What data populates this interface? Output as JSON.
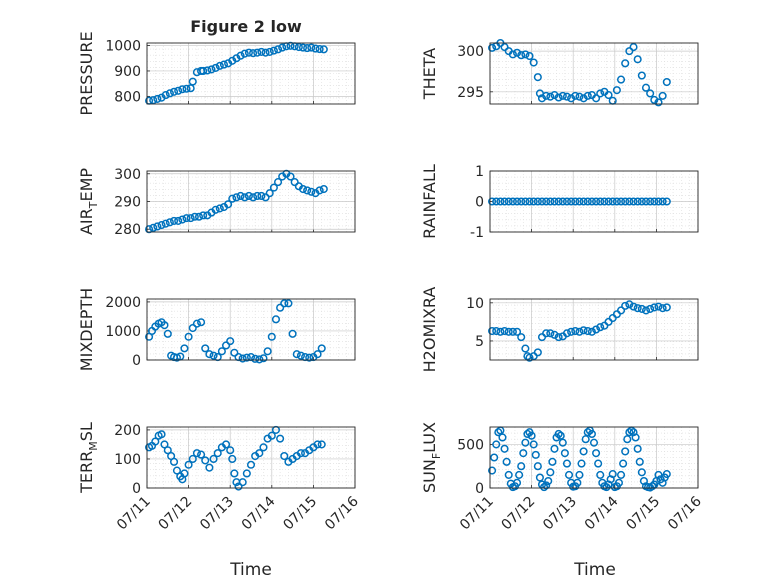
{
  "figure": {
    "title": "Figure 2 low",
    "x_label": "Time"
  },
  "style": {
    "marker_color": "#0072BD",
    "axis_color": "#262626",
    "grid_color": "#dcdcdc",
    "background": "#ffffff"
  },
  "chart_data": [
    {
      "type": "scatter",
      "ylabel": "PRESSURE",
      "ylabel_sub": "",
      "ylabel_rest": "",
      "ylim": [
        770,
        1010
      ],
      "yticks": [
        800,
        900,
        1000
      ],
      "xlim": [
        0,
        5
      ],
      "xticks": [
        "07/11",
        "07/12",
        "07/13",
        "07/14",
        "07/15",
        "07/16"
      ],
      "show_xtick_labels": false,
      "grid": true,
      "marker": "circle-open",
      "x": [
        0.05,
        0.15,
        0.25,
        0.35,
        0.45,
        0.55,
        0.65,
        0.75,
        0.85,
        0.95,
        1.05,
        1.1,
        1.2,
        1.3,
        1.35,
        1.45,
        1.55,
        1.65,
        1.75,
        1.85,
        1.95,
        2.05,
        2.15,
        2.25,
        2.35,
        2.45,
        2.55,
        2.65,
        2.75,
        2.85,
        2.95,
        3.05,
        3.15,
        3.25,
        3.35,
        3.45,
        3.55,
        3.65,
        3.75,
        3.85,
        3.95,
        4.05,
        4.15,
        4.25
      ],
      "y": [
        783,
        785,
        790,
        795,
        805,
        812,
        818,
        822,
        828,
        830,
        832,
        858,
        895,
        900,
        900,
        902,
        906,
        912,
        920,
        925,
        930,
        940,
        950,
        960,
        968,
        972,
        970,
        972,
        975,
        972,
        975,
        980,
        985,
        992,
        997,
        999,
        997,
        994,
        992,
        990,
        992,
        988,
        986,
        985
      ]
    },
    {
      "type": "scatter",
      "ylabel": "THETA",
      "ylabel_sub": "",
      "ylabel_rest": "",
      "ylim": [
        293.5,
        301
      ],
      "yticks": [
        295,
        300
      ],
      "xlim": [
        0,
        5
      ],
      "xticks": [
        "07/11",
        "07/12",
        "07/13",
        "07/14",
        "07/15",
        "07/16"
      ],
      "show_xtick_labels": false,
      "grid": true,
      "marker": "circle-open",
      "x": [
        0.05,
        0.15,
        0.25,
        0.35,
        0.45,
        0.55,
        0.65,
        0.75,
        0.85,
        0.95,
        1.05,
        1.15,
        1.2,
        1.25,
        1.35,
        1.45,
        1.55,
        1.65,
        1.75,
        1.85,
        1.95,
        2.05,
        2.15,
        2.25,
        2.35,
        2.45,
        2.55,
        2.65,
        2.75,
        2.85,
        2.95,
        3.05,
        3.15,
        3.25,
        3.35,
        3.45,
        3.55,
        3.65,
        3.75,
        3.85,
        3.95,
        4.05,
        4.15,
        4.25
      ],
      "y": [
        300.4,
        300.6,
        301.0,
        300.5,
        300.0,
        299.6,
        299.8,
        299.5,
        299.6,
        299.4,
        298.6,
        296.8,
        294.8,
        294.2,
        294.5,
        294.4,
        294.6,
        294.3,
        294.5,
        294.4,
        294.2,
        294.5,
        294.4,
        294.2,
        294.5,
        294.6,
        294.2,
        294.8,
        295.0,
        294.6,
        293.9,
        295.2,
        296.5,
        298.5,
        300.0,
        300.5,
        299.0,
        297.0,
        295.5,
        294.8,
        294.0,
        293.7,
        294.5,
        296.2
      ]
    },
    {
      "type": "scatter",
      "ylabel": "AIR",
      "ylabel_sub": "T",
      "ylabel_rest": "EMP",
      "ylim": [
        279,
        301
      ],
      "yticks": [
        280,
        290,
        300
      ],
      "xlim": [
        0,
        5
      ],
      "xticks": [
        "07/11",
        "07/12",
        "07/13",
        "07/14",
        "07/15",
        "07/16"
      ],
      "show_xtick_labels": false,
      "grid": true,
      "marker": "circle-open",
      "x": [
        0.05,
        0.15,
        0.25,
        0.35,
        0.45,
        0.55,
        0.65,
        0.75,
        0.85,
        0.95,
        1.05,
        1.15,
        1.25,
        1.35,
        1.45,
        1.55,
        1.65,
        1.75,
        1.85,
        1.95,
        2.05,
        2.15,
        2.25,
        2.35,
        2.45,
        2.55,
        2.65,
        2.75,
        2.85,
        2.95,
        3.05,
        3.15,
        3.25,
        3.35,
        3.45,
        3.55,
        3.65,
        3.75,
        3.85,
        3.95,
        4.05,
        4.15,
        4.25
      ],
      "y": [
        280.0,
        280.5,
        281.0,
        281.5,
        282.0,
        282.5,
        283.0,
        283.0,
        283.5,
        284.0,
        284.0,
        284.5,
        284.5,
        285.0,
        285.0,
        286.0,
        287.0,
        287.5,
        288.0,
        289.0,
        291.0,
        291.5,
        292.0,
        291.5,
        292.0,
        291.5,
        292.0,
        292.0,
        291.5,
        293.0,
        295.0,
        297.0,
        299.0,
        300.0,
        299.0,
        297.0,
        295.5,
        294.5,
        294.0,
        293.5,
        293.0,
        294.0,
        294.5
      ]
    },
    {
      "type": "scatter",
      "ylabel": "RAINFALL",
      "ylabel_sub": "",
      "ylabel_rest": "",
      "ylim": [
        -1,
        1
      ],
      "yticks": [
        -1,
        0,
        1
      ],
      "xlim": [
        0,
        5
      ],
      "xticks": [
        "07/11",
        "07/12",
        "07/13",
        "07/14",
        "07/15",
        "07/16"
      ],
      "show_xtick_labels": false,
      "grid": true,
      "marker": "circle-open",
      "x": [
        0.05,
        0.15,
        0.25,
        0.35,
        0.45,
        0.55,
        0.65,
        0.75,
        0.85,
        0.95,
        1.05,
        1.15,
        1.25,
        1.35,
        1.45,
        1.55,
        1.65,
        1.75,
        1.85,
        1.95,
        2.05,
        2.15,
        2.25,
        2.35,
        2.45,
        2.55,
        2.65,
        2.75,
        2.85,
        2.95,
        3.05,
        3.15,
        3.25,
        3.35,
        3.45,
        3.55,
        3.65,
        3.75,
        3.85,
        3.95,
        4.05,
        4.15,
        4.25
      ],
      "y": [
        0,
        0,
        0,
        0,
        0,
        0,
        0,
        0,
        0,
        0,
        0,
        0,
        0,
        0,
        0,
        0,
        0,
        0,
        0,
        0,
        0,
        0,
        0,
        0,
        0,
        0,
        0,
        0,
        0,
        0,
        0,
        0,
        0,
        0,
        0,
        0,
        0,
        0,
        0,
        0,
        0,
        0,
        0
      ]
    },
    {
      "type": "scatter",
      "ylabel": "MIXDEPTH",
      "ylabel_sub": "",
      "ylabel_rest": "",
      "ylim": [
        0,
        2100
      ],
      "yticks": [
        0,
        1000,
        2000
      ],
      "xlim": [
        0,
        5
      ],
      "xticks": [
        "07/11",
        "07/12",
        "07/13",
        "07/14",
        "07/15",
        "07/16"
      ],
      "show_xtick_labels": false,
      "grid": true,
      "marker": "circle-open",
      "x": [
        0.05,
        0.12,
        0.2,
        0.28,
        0.35,
        0.42,
        0.5,
        0.58,
        0.65,
        0.72,
        0.8,
        0.9,
        1.0,
        1.1,
        1.2,
        1.3,
        1.4,
        1.5,
        1.6,
        1.7,
        1.8,
        1.9,
        2.0,
        2.1,
        2.2,
        2.3,
        2.4,
        2.5,
        2.6,
        2.7,
        2.8,
        2.9,
        3.0,
        3.1,
        3.2,
        3.3,
        3.4,
        3.5,
        3.6,
        3.7,
        3.8,
        3.9,
        4.0,
        4.1,
        4.2
      ],
      "y": [
        800,
        1000,
        1150,
        1250,
        1300,
        1200,
        900,
        150,
        100,
        80,
        120,
        400,
        800,
        1100,
        1250,
        1300,
        400,
        200,
        150,
        100,
        300,
        500,
        650,
        250,
        100,
        50,
        80,
        100,
        40,
        20,
        60,
        300,
        800,
        1400,
        1800,
        1950,
        1950,
        900,
        200,
        150,
        100,
        80,
        100,
        200,
        400
      ]
    },
    {
      "type": "scatter",
      "ylabel": "H2OMIXRA",
      "ylabel_sub": "",
      "ylabel_rest": "",
      "ylim": [
        2.5,
        10.5
      ],
      "yticks": [
        5,
        10
      ],
      "xlim": [
        0,
        5
      ],
      "xticks": [
        "07/11",
        "07/12",
        "07/13",
        "07/14",
        "07/15",
        "07/16"
      ],
      "show_xtick_labels": false,
      "grid": true,
      "marker": "circle-open",
      "x": [
        0.05,
        0.15,
        0.25,
        0.35,
        0.45,
        0.55,
        0.65,
        0.75,
        0.85,
        0.9,
        0.95,
        1.05,
        1.15,
        1.25,
        1.35,
        1.45,
        1.55,
        1.65,
        1.75,
        1.85,
        1.95,
        2.05,
        2.15,
        2.25,
        2.35,
        2.45,
        2.55,
        2.65,
        2.75,
        2.85,
        2.95,
        3.05,
        3.15,
        3.25,
        3.35,
        3.45,
        3.55,
        3.65,
        3.75,
        3.85,
        3.95,
        4.05,
        4.15,
        4.25
      ],
      "y": [
        6.3,
        6.3,
        6.2,
        6.3,
        6.2,
        6.2,
        6.2,
        5.5,
        4.0,
        3.0,
        2.8,
        3.0,
        3.5,
        5.5,
        6.0,
        6.0,
        5.8,
        5.5,
        5.6,
        6.0,
        6.2,
        6.3,
        6.2,
        6.4,
        6.3,
        6.2,
        6.5,
        6.8,
        7.0,
        7.5,
        8.0,
        8.5,
        9.0,
        9.6,
        9.8,
        9.5,
        9.3,
        9.2,
        9.0,
        9.2,
        9.4,
        9.5,
        9.3,
        9.4
      ]
    },
    {
      "type": "scatter",
      "ylabel": "TERR",
      "ylabel_sub": "M",
      "ylabel_rest": "SL",
      "ylim": [
        0,
        210
      ],
      "yticks": [
        0,
        100,
        200
      ],
      "xlim": [
        0,
        5
      ],
      "xticks": [
        "07/11",
        "07/12",
        "07/13",
        "07/14",
        "07/15",
        "07/16"
      ],
      "show_xtick_labels": true,
      "grid": true,
      "marker": "circle-open",
      "x": [
        0.05,
        0.12,
        0.2,
        0.28,
        0.35,
        0.42,
        0.5,
        0.58,
        0.65,
        0.72,
        0.8,
        0.85,
        0.9,
        1.0,
        1.1,
        1.2,
        1.3,
        1.4,
        1.5,
        1.6,
        1.7,
        1.8,
        1.9,
        2.0,
        2.05,
        2.1,
        2.15,
        2.2,
        2.3,
        2.4,
        2.5,
        2.6,
        2.7,
        2.8,
        2.9,
        3.0,
        3.1,
        3.2,
        3.3,
        3.4,
        3.5,
        3.6,
        3.7,
        3.8,
        3.9,
        4.0,
        4.1,
        4.2
      ],
      "y": [
        140,
        145,
        160,
        180,
        185,
        150,
        130,
        110,
        90,
        60,
        40,
        30,
        50,
        80,
        100,
        120,
        115,
        95,
        70,
        100,
        120,
        140,
        150,
        130,
        100,
        50,
        20,
        5,
        20,
        50,
        80,
        110,
        120,
        140,
        170,
        180,
        200,
        170,
        110,
        90,
        100,
        110,
        120,
        120,
        130,
        140,
        150,
        150
      ]
    },
    {
      "type": "scatter",
      "ylabel": "SUN",
      "ylabel_sub": "F",
      "ylabel_rest": "LUX",
      "ylim": [
        0,
        700
      ],
      "yticks": [
        0,
        500
      ],
      "xlim": [
        0,
        5
      ],
      "xticks": [
        "07/11",
        "07/12",
        "07/13",
        "07/14",
        "07/15",
        "07/16"
      ],
      "show_xtick_labels": true,
      "grid": true,
      "marker": "circle-open",
      "x": [
        0.05,
        0.1,
        0.15,
        0.2,
        0.25,
        0.3,
        0.35,
        0.4,
        0.45,
        0.5,
        0.55,
        0.6,
        0.65,
        0.7,
        0.75,
        0.8,
        0.85,
        0.9,
        0.95,
        1.0,
        1.05,
        1.1,
        1.15,
        1.2,
        1.25,
        1.3,
        1.35,
        1.4,
        1.45,
        1.5,
        1.55,
        1.6,
        1.65,
        1.7,
        1.75,
        1.8,
        1.85,
        1.9,
        1.95,
        2.0,
        2.05,
        2.1,
        2.15,
        2.2,
        2.25,
        2.3,
        2.35,
        2.4,
        2.45,
        2.5,
        2.55,
        2.6,
        2.65,
        2.7,
        2.75,
        2.8,
        2.85,
        2.9,
        2.95,
        3.0,
        3.05,
        3.1,
        3.15,
        3.2,
        3.25,
        3.3,
        3.35,
        3.4,
        3.45,
        3.5,
        3.55,
        3.6,
        3.65,
        3.7,
        3.75,
        3.8,
        3.85,
        3.9,
        3.95,
        4.0,
        4.05,
        4.1,
        4.15,
        4.2,
        4.25
      ],
      "y": [
        200,
        350,
        500,
        640,
        660,
        580,
        450,
        300,
        150,
        50,
        10,
        20,
        60,
        150,
        250,
        400,
        520,
        620,
        640,
        600,
        500,
        380,
        250,
        120,
        40,
        10,
        30,
        80,
        180,
        300,
        450,
        580,
        620,
        600,
        520,
        400,
        280,
        150,
        60,
        15,
        20,
        60,
        150,
        280,
        420,
        560,
        640,
        660,
        620,
        520,
        400,
        280,
        150,
        60,
        20,
        10,
        40,
        100,
        160,
        10,
        20,
        60,
        150,
        280,
        420,
        560,
        640,
        660,
        640,
        580,
        450,
        300,
        180,
        80,
        20,
        10,
        5,
        20,
        40,
        80,
        150,
        100,
        60,
        120,
        160
      ]
    }
  ]
}
